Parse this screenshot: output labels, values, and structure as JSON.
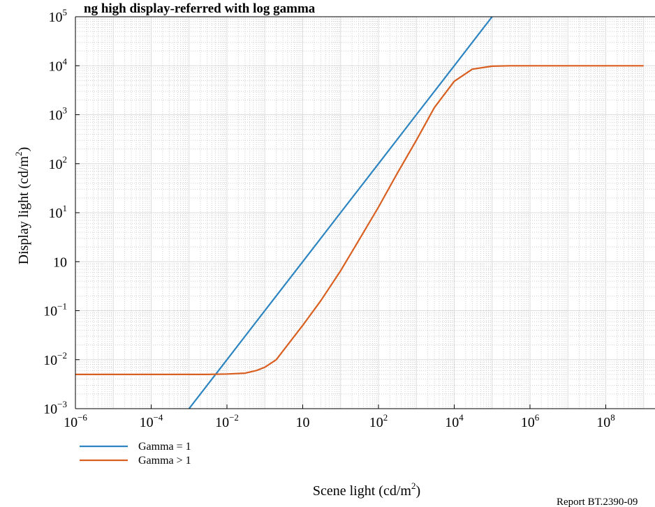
{
  "title_fragment": "ng high display-referred with log gamma",
  "report_label": "Report BT.2390-09",
  "colors": {
    "gamma1": "#2c84c0",
    "gamma_gt1": "#d95f20"
  },
  "chart_data": {
    "type": "line",
    "xscale": "log",
    "yscale": "log",
    "xlabel": "Scene light (cd/m²)",
    "ylabel": "Display light (cd/m²)",
    "xlim": [
      1e-06,
      1000000000.0
    ],
    "ylim": [
      0.001,
      100000.0
    ],
    "grid": true,
    "legend_position": "bottom-left",
    "x_ticks": [
      {
        "value": 1e-06,
        "base": "10",
        "exp": "−6"
      },
      {
        "value": 0.0001,
        "base": "10",
        "exp": "−4"
      },
      {
        "value": 0.01,
        "base": "10",
        "exp": "−2"
      },
      {
        "value": 1,
        "base": "10",
        "exp": ""
      },
      {
        "value": 100.0,
        "base": "10",
        "exp": "2"
      },
      {
        "value": 10000.0,
        "base": "10",
        "exp": "4"
      },
      {
        "value": 1000000.0,
        "base": "10",
        "exp": "6"
      },
      {
        "value": 100000000.0,
        "base": "10",
        "exp": "8"
      }
    ],
    "y_ticks": [
      {
        "value": 0.001,
        "base": "10",
        "exp": "−3"
      },
      {
        "value": 0.01,
        "base": "10",
        "exp": "−2"
      },
      {
        "value": 0.1,
        "base": "10",
        "exp": "−1"
      },
      {
        "value": 1,
        "base": "10",
        "exp": ""
      },
      {
        "value": 10.0,
        "base": "10",
        "exp": "1"
      },
      {
        "value": 100.0,
        "base": "10",
        "exp": "2"
      },
      {
        "value": 1000.0,
        "base": "10",
        "exp": "3"
      },
      {
        "value": 10000.0,
        "base": "10",
        "exp": "4"
      },
      {
        "value": 100000.0,
        "base": "10",
        "exp": "5"
      }
    ],
    "series": [
      {
        "name": "Gamma = 1",
        "x": [
          0.001,
          0.01,
          0.1,
          1,
          10,
          100,
          1000,
          10000,
          100000
        ],
        "y": [
          0.001,
          0.01,
          0.1,
          1,
          10,
          100,
          1000,
          10000,
          100000
        ]
      },
      {
        "name": "Gamma > 1",
        "x": [
          1e-06,
          1e-05,
          0.0001,
          0.001,
          0.003,
          0.01,
          0.03,
          0.06,
          0.1,
          0.2,
          0.4,
          1,
          3,
          10,
          30,
          100,
          300,
          1000,
          3000,
          10000,
          30000,
          100000,
          300000,
          1000000.0,
          10000000.0,
          100000000.0,
          1000000000.0
        ],
        "y": [
          0.005,
          0.005,
          0.005,
          0.005,
          0.005,
          0.0051,
          0.0053,
          0.006,
          0.007,
          0.01,
          0.02,
          0.05,
          0.16,
          0.65,
          2.7,
          13,
          60,
          300,
          1400,
          4800,
          8500,
          9800,
          10000,
          10000,
          10000,
          10000,
          10000
        ]
      }
    ]
  }
}
